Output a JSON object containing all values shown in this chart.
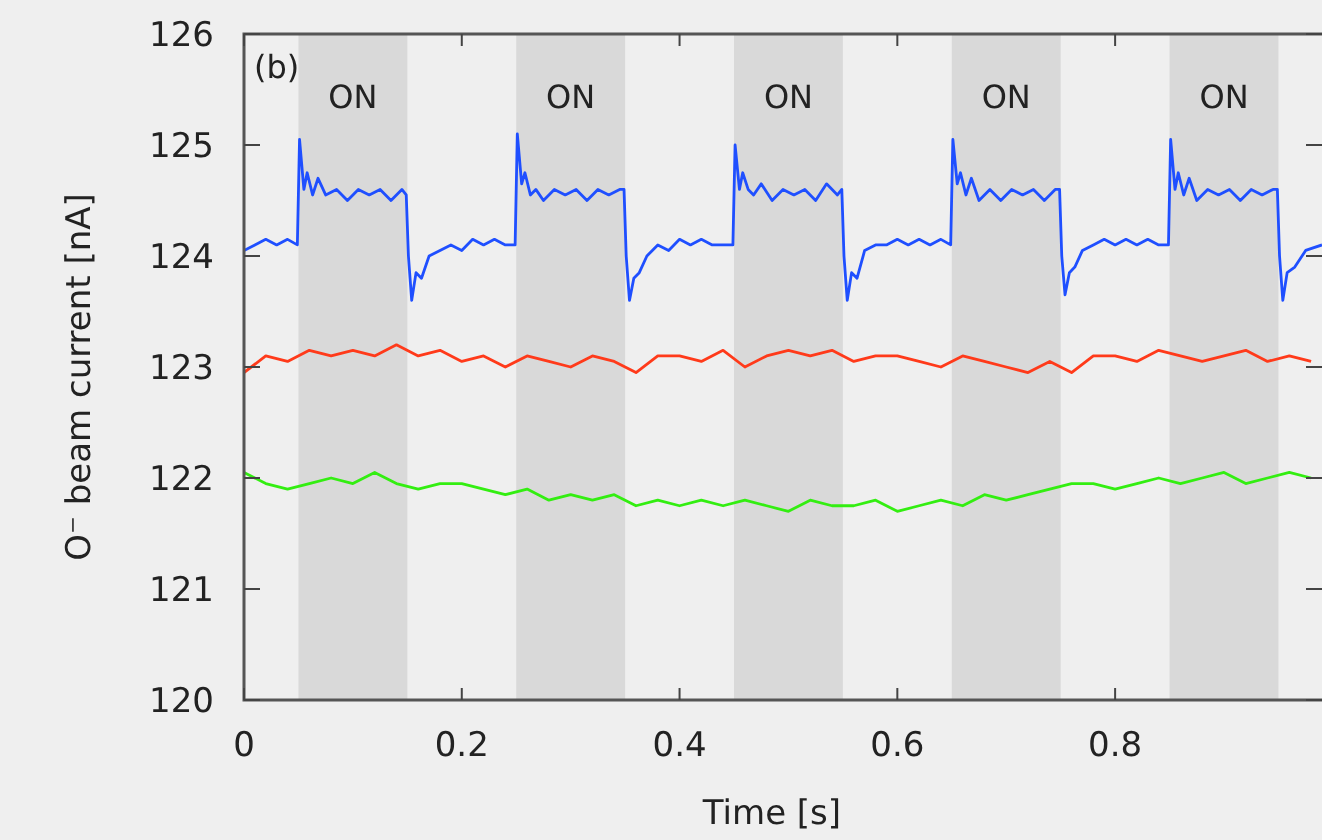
{
  "chart_data": {
    "type": "line",
    "xlabel": "Time [s]",
    "ylabel": "O⁻ beam current [nA]",
    "annotations": [
      "(b)"
    ],
    "xlim": [
      0,
      0.99
    ],
    "ylim": [
      120,
      126
    ],
    "xticks": [
      0,
      0.2,
      0.4,
      0.6,
      0.8
    ],
    "yticks": [
      120,
      121,
      122,
      123,
      124,
      125,
      126
    ],
    "grid": false,
    "marker": "none",
    "line_style": "solid",
    "bands": [
      {
        "axis": "x",
        "from": 0.05,
        "to": 0.15,
        "label": "ON",
        "color": "#d9d9d9"
      },
      {
        "axis": "x",
        "from": 0.25,
        "to": 0.35,
        "label": "ON",
        "color": "#d9d9d9"
      },
      {
        "axis": "x",
        "from": 0.45,
        "to": 0.55,
        "label": "ON",
        "color": "#d9d9d9"
      },
      {
        "axis": "x",
        "from": 0.65,
        "to": 0.75,
        "label": "ON",
        "color": "#d9d9d9"
      },
      {
        "axis": "x",
        "from": 0.85,
        "to": 0.95,
        "label": "ON",
        "color": "#d9d9d9"
      }
    ],
    "x": [
      0,
      0.02,
      0.04,
      0.06,
      0.08,
      0.1,
      0.12,
      0.14,
      0.16,
      0.18,
      0.2,
      0.22,
      0.24,
      0.26,
      0.28,
      0.3,
      0.32,
      0.34,
      0.36,
      0.38,
      0.4,
      0.42,
      0.44,
      0.46,
      0.48,
      0.5,
      0.52,
      0.54,
      0.56,
      0.58,
      0.6,
      0.62,
      0.64,
      0.66,
      0.68,
      0.7,
      0.72,
      0.74,
      0.76,
      0.78,
      0.8,
      0.82,
      0.84,
      0.86,
      0.88,
      0.9,
      0.92,
      0.94,
      0.96,
      0.98
    ],
    "series": [
      {
        "color": "#1f4fff",
        "x": [
          0,
          0.01,
          0.02,
          0.03,
          0.04,
          0.049,
          0.051,
          0.055,
          0.058,
          0.063,
          0.068,
          0.075,
          0.085,
          0.095,
          0.105,
          0.115,
          0.125,
          0.135,
          0.145,
          0.149,
          0.151,
          0.154,
          0.158,
          0.163,
          0.17,
          0.18,
          0.19,
          0.2,
          0.21,
          0.22,
          0.23,
          0.24,
          0.249,
          0.251,
          0.255,
          0.258,
          0.263,
          0.268,
          0.275,
          0.285,
          0.295,
          0.305,
          0.315,
          0.325,
          0.335,
          0.345,
          0.349,
          0.351,
          0.354,
          0.358,
          0.363,
          0.37,
          0.38,
          0.39,
          0.4,
          0.41,
          0.42,
          0.43,
          0.44,
          0.449,
          0.451,
          0.455,
          0.458,
          0.463,
          0.468,
          0.475,
          0.485,
          0.495,
          0.505,
          0.515,
          0.525,
          0.535,
          0.545,
          0.549,
          0.551,
          0.554,
          0.558,
          0.563,
          0.57,
          0.58,
          0.59,
          0.6,
          0.61,
          0.62,
          0.63,
          0.64,
          0.649,
          0.651,
          0.655,
          0.658,
          0.663,
          0.668,
          0.675,
          0.685,
          0.695,
          0.705,
          0.715,
          0.725,
          0.735,
          0.745,
          0.749,
          0.751,
          0.754,
          0.758,
          0.763,
          0.77,
          0.78,
          0.79,
          0.8,
          0.81,
          0.82,
          0.83,
          0.84,
          0.849,
          0.851,
          0.855,
          0.858,
          0.863,
          0.868,
          0.875,
          0.885,
          0.895,
          0.905,
          0.915,
          0.925,
          0.935,
          0.945,
          0.949,
          0.951,
          0.954,
          0.958,
          0.965,
          0.975,
          0.99
        ],
        "values": [
          124.05,
          124.1,
          124.15,
          124.1,
          124.15,
          124.1,
          125.05,
          124.6,
          124.75,
          124.55,
          124.7,
          124.55,
          124.6,
          124.5,
          124.6,
          124.55,
          124.6,
          124.5,
          124.6,
          124.55,
          124.0,
          123.6,
          123.85,
          123.8,
          124.0,
          124.05,
          124.1,
          124.05,
          124.15,
          124.1,
          124.15,
          124.1,
          124.1,
          125.1,
          124.65,
          124.75,
          124.55,
          124.6,
          124.5,
          124.6,
          124.55,
          124.6,
          124.5,
          124.6,
          124.55,
          124.6,
          124.6,
          124.0,
          123.6,
          123.8,
          123.85,
          124.0,
          124.1,
          124.05,
          124.15,
          124.1,
          124.15,
          124.1,
          124.1,
          124.1,
          125.0,
          124.6,
          124.75,
          124.6,
          124.55,
          124.65,
          124.5,
          124.6,
          124.55,
          124.6,
          124.5,
          124.65,
          124.55,
          124.6,
          124.0,
          123.6,
          123.85,
          123.8,
          124.05,
          124.1,
          124.1,
          124.15,
          124.1,
          124.15,
          124.1,
          124.15,
          124.1,
          125.05,
          124.65,
          124.75,
          124.55,
          124.7,
          124.5,
          124.6,
          124.5,
          124.6,
          124.55,
          124.6,
          124.5,
          124.6,
          124.6,
          124.0,
          123.65,
          123.85,
          123.9,
          124.05,
          124.1,
          124.15,
          124.1,
          124.15,
          124.1,
          124.15,
          124.1,
          124.1,
          125.05,
          124.6,
          124.75,
          124.55,
          124.7,
          124.5,
          124.6,
          124.55,
          124.6,
          124.5,
          124.6,
          124.55,
          124.6,
          124.6,
          124.0,
          123.6,
          123.85,
          123.9,
          124.05,
          124.1
        ]
      },
      {
        "color": "#ff3a1a",
        "values": [
          122.95,
          123.1,
          123.05,
          123.15,
          123.1,
          123.15,
          123.1,
          123.2,
          123.1,
          123.15,
          123.05,
          123.1,
          123.0,
          123.1,
          123.05,
          123.0,
          123.1,
          123.05,
          122.95,
          123.1,
          123.1,
          123.05,
          123.15,
          123.0,
          123.1,
          123.15,
          123.1,
          123.15,
          123.05,
          123.1,
          123.1,
          123.05,
          123.0,
          123.1,
          123.05,
          123.0,
          122.95,
          123.05,
          122.95,
          123.1,
          123.1,
          123.05,
          123.15,
          123.1,
          123.05,
          123.1,
          123.15,
          123.05,
          123.1,
          123.05
        ]
      },
      {
        "color": "#33ee11",
        "values": [
          122.05,
          121.95,
          121.9,
          121.95,
          122.0,
          121.95,
          122.05,
          121.95,
          121.9,
          121.95,
          121.95,
          121.9,
          121.85,
          121.9,
          121.8,
          121.85,
          121.8,
          121.85,
          121.75,
          121.8,
          121.75,
          121.8,
          121.75,
          121.8,
          121.75,
          121.7,
          121.8,
          121.75,
          121.75,
          121.8,
          121.7,
          121.75,
          121.8,
          121.75,
          121.85,
          121.8,
          121.85,
          121.9,
          121.95,
          121.95,
          121.9,
          121.95,
          122.0,
          121.95,
          122.0,
          122.05,
          121.95,
          122.0,
          122.05,
          122.0
        ]
      }
    ]
  }
}
